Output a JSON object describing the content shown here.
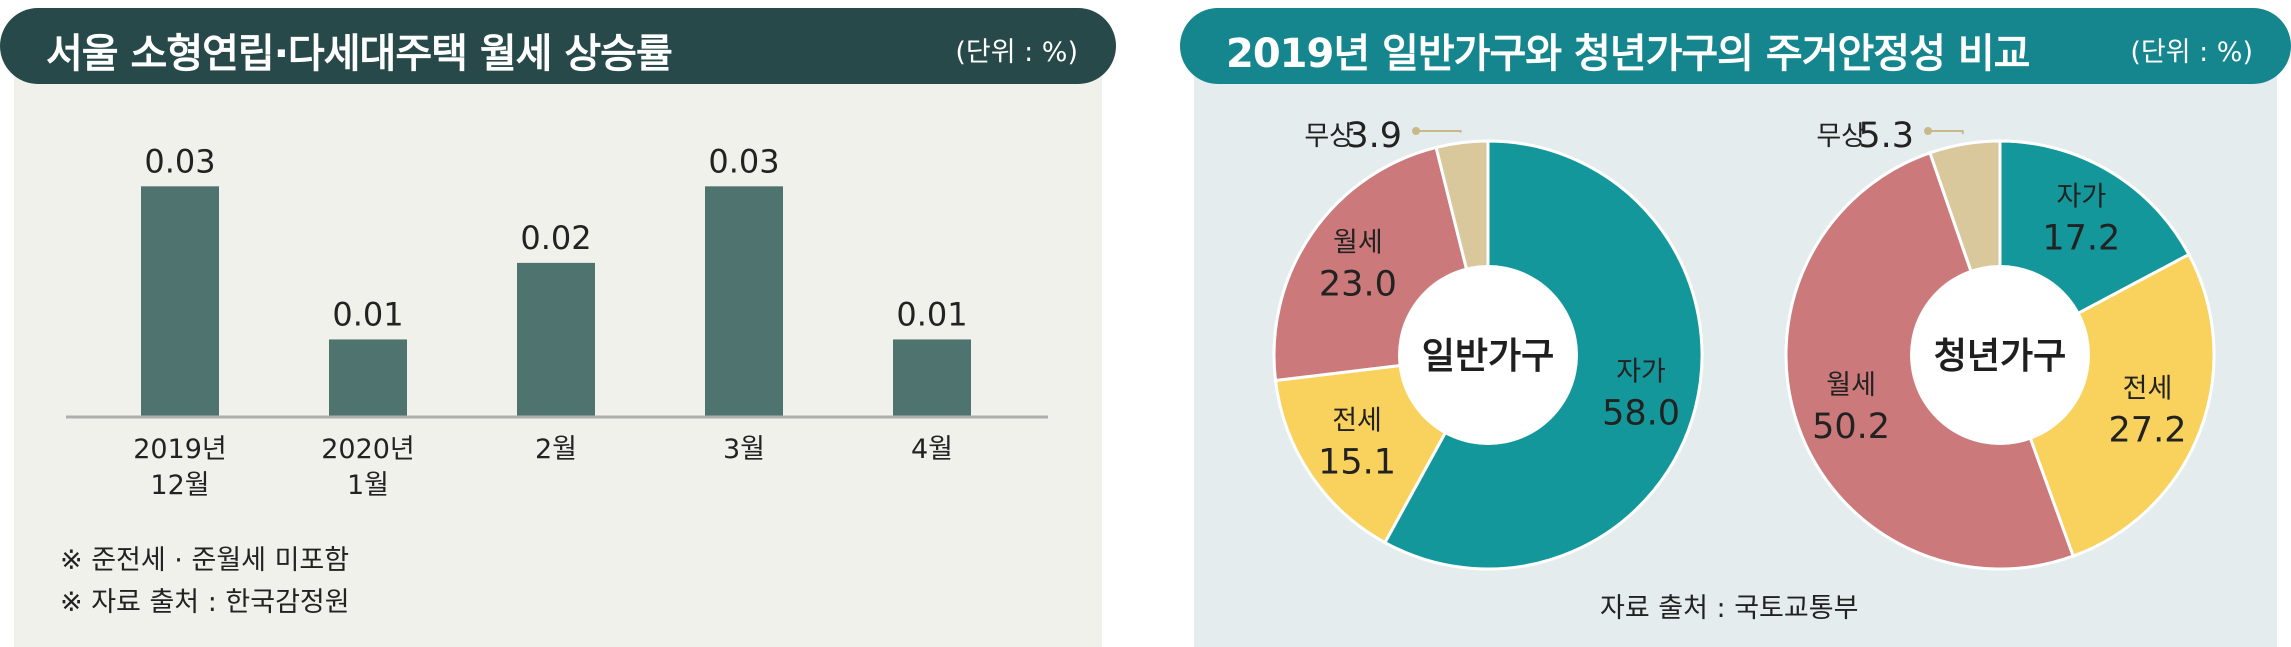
{
  "left": {
    "title": "서울 소형연립·다세대주택 월세 상승률",
    "unit": "(단위 : %)",
    "notes": [
      "※ 준전세 · 준월세 미포함",
      "※ 자료 출처 : 한국감정원"
    ]
  },
  "right": {
    "title": "2019년 일반가구와 청년가구의 주거안정성 비교",
    "unit": "(단위 : %)",
    "source": "자료 출처 : 국토교통부"
  },
  "chart_data": [
    {
      "type": "bar",
      "title": "서울 소형연립·다세대주택 월세 상승률",
      "categories": [
        [
          "2019년",
          "12월"
        ],
        [
          "2020년",
          "1월"
        ],
        [
          "2월"
        ],
        [
          "3월"
        ],
        [
          "4월"
        ]
      ],
      "values": [
        0.03,
        0.01,
        0.02,
        0.03,
        0.01
      ],
      "value_labels": [
        "0.03",
        "0.01",
        "0.02",
        "0.03",
        "0.01"
      ],
      "ylim": [
        0,
        0.04
      ],
      "grid": false,
      "colors": {
        "bar": "#4f7470",
        "axis": "#aeaeae"
      }
    },
    {
      "type": "pie",
      "center_label": "일반가구",
      "slices": [
        {
          "label": "자가",
          "value": 58.0,
          "text": "58.0",
          "color": "#14979b"
        },
        {
          "label": "전세",
          "value": 15.1,
          "text": "15.1",
          "color": "#f9d15d"
        },
        {
          "label": "월세",
          "value": 23.0,
          "text": "23.0",
          "color": "#cb797a"
        },
        {
          "label": "무상",
          "value": 3.9,
          "text": "3.9",
          "color": "#d8c89c"
        }
      ]
    },
    {
      "type": "pie",
      "center_label": "청년가구",
      "slices": [
        {
          "label": "자가",
          "value": 17.2,
          "text": "17.2",
          "color": "#14979b"
        },
        {
          "label": "전세",
          "value": 27.2,
          "text": "27.2",
          "color": "#f9d15d"
        },
        {
          "label": "월세",
          "value": 50.2,
          "text": "50.2",
          "color": "#cb797a"
        },
        {
          "label": "무상",
          "value": 5.3,
          "text": "5.3",
          "color": "#d8c89c"
        }
      ]
    }
  ]
}
